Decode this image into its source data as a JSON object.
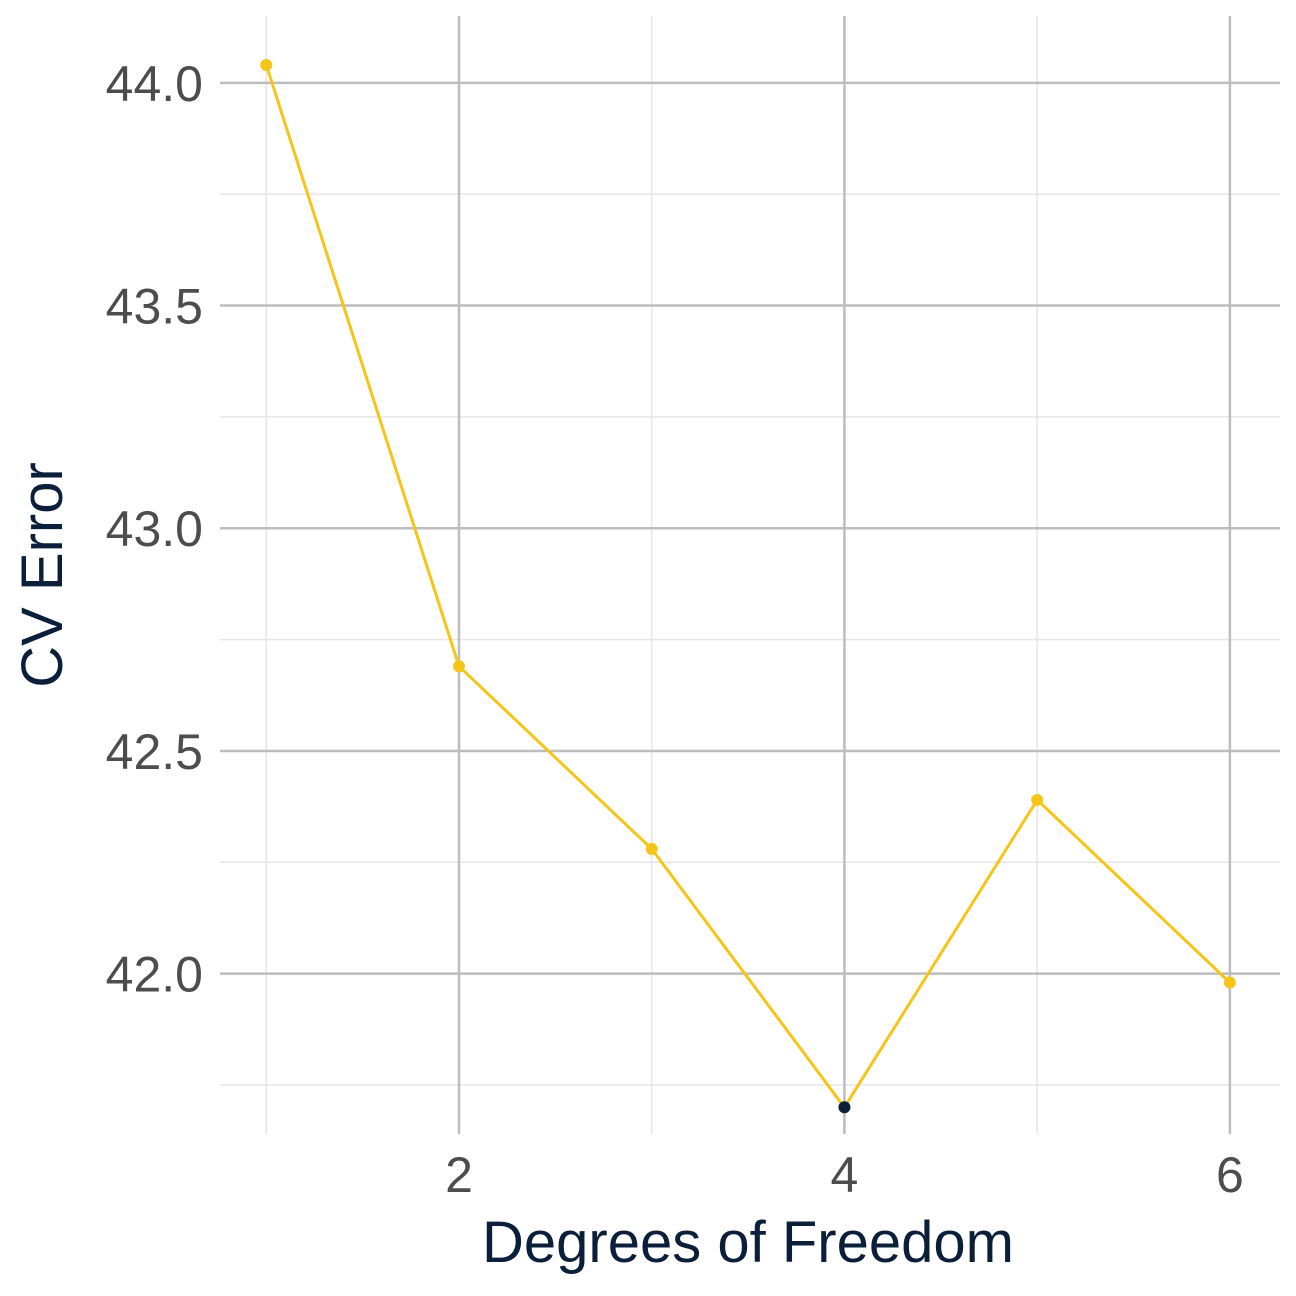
{
  "chart_data": {
    "type": "line",
    "title": "",
    "xlabel": "Degrees of Freedom",
    "ylabel": "CV Error",
    "x": [
      1,
      2,
      3,
      4,
      5,
      6
    ],
    "series": [
      {
        "values": [
          44.04,
          42.69,
          42.28,
          41.7,
          42.39,
          41.98
        ]
      }
    ],
    "highlight": {
      "x": 4,
      "y": 41.7
    },
    "xlim": [
      0.76,
      6.26
    ],
    "ylim": [
      41.64,
      44.15
    ],
    "x_ticks": [
      2,
      4,
      6
    ],
    "x_tick_labels": [
      "2",
      "4",
      "6"
    ],
    "y_ticks": [
      42.0,
      42.5,
      43.0,
      43.5,
      44.0
    ],
    "y_tick_labels": [
      "42.0",
      "42.5",
      "43.0",
      "43.5",
      "44.0"
    ],
    "grid": true,
    "legend": "none",
    "colors": {
      "line": "#f5c518",
      "point": "#f5c518",
      "highlight_point": "#0b1f3a",
      "major_grid": "#bdbdbd",
      "minor_grid": "#e6e6e6",
      "axis_title": "#0b1f3a",
      "tick_label": "#4d4d4d"
    }
  }
}
